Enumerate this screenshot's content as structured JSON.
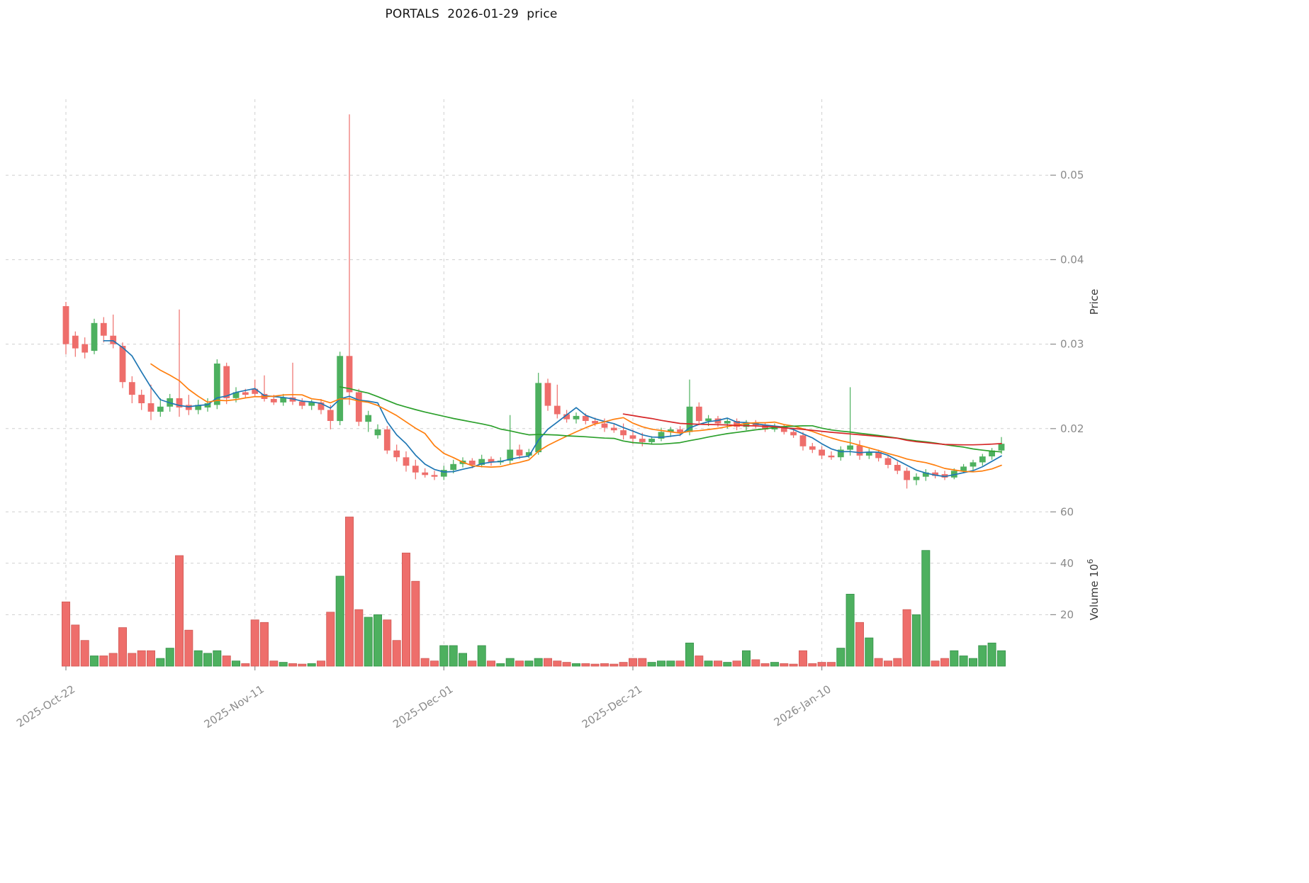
{
  "style": {
    "background": "#ffffff",
    "up_color": "#4db05f",
    "down_color": "#ee6e6b",
    "up_edge": "#35914a",
    "down_edge": "#d05a56",
    "grid_color": "#cfcfcf",
    "tick_color": "#8a8a8a",
    "axis_label_color": "#3a3a3a",
    "title_color": "#141414"
  },
  "chart_data": {
    "type": "candlestick+volume",
    "title": "PORTALS  2026-01-29  price",
    "price_axis_label": "Price",
    "volume_axis_label": "Volume 10^6",
    "volume_label_prefix": "Volume  10",
    "volume_exponent": "6",
    "grid": "dashed",
    "legend": "none",
    "x_ticks": [
      "2025-Oct-22",
      "2025-Nov-11",
      "2025-Dec-01",
      "2025-Dec-21",
      "2026-Jan-10"
    ],
    "x_tick_indices": [
      0,
      20,
      40,
      60,
      80
    ],
    "price_ticks": [
      0.02,
      0.03,
      0.04,
      0.05
    ],
    "volume_ticks": [
      20,
      40,
      60
    ],
    "price_ylim": [
      0.011,
      0.059
    ],
    "volume_ylim": [
      0,
      62
    ],
    "moving_averages": [
      {
        "name": "MA5",
        "window": 5,
        "color": "#1f77b4"
      },
      {
        "name": "MA10",
        "window": 10,
        "color": "#ff7f0e"
      },
      {
        "name": "MA30",
        "window": 30,
        "color": "#2ca02c"
      },
      {
        "name": "MA60",
        "window": 60,
        "color": "#d62728"
      }
    ],
    "dates": [
      "2025-10-22",
      "2025-10-23",
      "2025-10-24",
      "2025-10-25",
      "2025-10-26",
      "2025-10-27",
      "2025-10-28",
      "2025-10-29",
      "2025-10-30",
      "2025-10-31",
      "2025-11-01",
      "2025-11-02",
      "2025-11-03",
      "2025-11-04",
      "2025-11-05",
      "2025-11-06",
      "2025-11-07",
      "2025-11-08",
      "2025-11-09",
      "2025-11-10",
      "2025-11-11",
      "2025-11-12",
      "2025-11-13",
      "2025-11-14",
      "2025-11-15",
      "2025-11-16",
      "2025-11-17",
      "2025-11-18",
      "2025-11-19",
      "2025-11-20",
      "2025-11-21",
      "2025-11-22",
      "2025-11-23",
      "2025-11-24",
      "2025-11-25",
      "2025-11-26",
      "2025-11-27",
      "2025-11-28",
      "2025-11-29",
      "2025-11-30",
      "2025-12-01",
      "2025-12-02",
      "2025-12-03",
      "2025-12-04",
      "2025-12-05",
      "2025-12-06",
      "2025-12-07",
      "2025-12-08",
      "2025-12-09",
      "2025-12-10",
      "2025-12-11",
      "2025-12-12",
      "2025-12-13",
      "2025-12-14",
      "2025-12-15",
      "2025-12-16",
      "2025-12-17",
      "2025-12-18",
      "2025-12-19",
      "2025-12-20",
      "2025-12-21",
      "2025-12-22",
      "2025-12-23",
      "2025-12-24",
      "2025-12-25",
      "2025-12-26",
      "2025-12-27",
      "2025-12-28",
      "2025-12-29",
      "2025-12-30",
      "2025-12-31",
      "2026-01-01",
      "2026-01-02",
      "2026-01-03",
      "2026-01-04",
      "2026-01-05",
      "2026-01-06",
      "2026-01-07",
      "2026-01-08",
      "2026-01-09",
      "2026-01-10",
      "2026-01-11",
      "2026-01-12",
      "2026-01-13",
      "2026-01-14",
      "2026-01-15",
      "2026-01-16",
      "2026-01-17",
      "2026-01-18",
      "2026-01-19",
      "2026-01-20",
      "2026-01-21",
      "2026-01-22",
      "2026-01-23",
      "2026-01-24",
      "2026-01-25",
      "2026-01-26",
      "2026-01-27",
      "2026-01-28",
      "2026-01-29"
    ],
    "open": [
      0.0345,
      0.031,
      0.03,
      0.0292,
      0.0325,
      0.031,
      0.0298,
      0.0255,
      0.024,
      0.023,
      0.022,
      0.0226,
      0.0236,
      0.0228,
      0.0222,
      0.0225,
      0.0228,
      0.0274,
      0.0236,
      0.0243,
      0.0247,
      0.0241,
      0.0235,
      0.0231,
      0.0237,
      0.0232,
      0.0227,
      0.0231,
      0.0222,
      0.0209,
      0.0286,
      0.0243,
      0.0208,
      0.0192,
      0.0199,
      0.0174,
      0.0166,
      0.0156,
      0.0148,
      0.0145,
      0.0143,
      0.0151,
      0.0158,
      0.0162,
      0.0157,
      0.0164,
      0.016,
      0.0162,
      0.0175,
      0.0168,
      0.0172,
      0.0254,
      0.0227,
      0.0217,
      0.0211,
      0.0215,
      0.0209,
      0.0206,
      0.0201,
      0.0198,
      0.0192,
      0.0188,
      0.0184,
      0.0188,
      0.0196,
      0.0199,
      0.0196,
      0.0226,
      0.0209,
      0.0212,
      0.0206,
      0.0209,
      0.0202,
      0.0207,
      0.0204,
      0.0199,
      0.0203,
      0.0196,
      0.0192,
      0.0179,
      0.0175,
      0.0168,
      0.0166,
      0.0175,
      0.018,
      0.0168,
      0.0172,
      0.0165,
      0.0157,
      0.015,
      0.0139,
      0.0143,
      0.0148,
      0.0146,
      0.0142,
      0.015,
      0.0155,
      0.016,
      0.0167,
      0.0174
    ],
    "high": [
      0.035,
      0.0315,
      0.0308,
      0.033,
      0.0332,
      0.0335,
      0.0302,
      0.0262,
      0.0246,
      0.0252,
      0.0236,
      0.0241,
      0.0341,
      0.024,
      0.0234,
      0.0236,
      0.0282,
      0.0278,
      0.0249,
      0.0247,
      0.0258,
      0.0263,
      0.024,
      0.0241,
      0.0278,
      0.0236,
      0.0234,
      0.0235,
      0.0228,
      0.0291,
      0.0572,
      0.0247,
      0.0221,
      0.0205,
      0.0203,
      0.0181,
      0.0173,
      0.0163,
      0.0153,
      0.015,
      0.0156,
      0.0163,
      0.0166,
      0.0165,
      0.0169,
      0.0167,
      0.0166,
      0.0216,
      0.0181,
      0.0176,
      0.0266,
      0.0259,
      0.0252,
      0.0222,
      0.0219,
      0.0218,
      0.0213,
      0.0212,
      0.0205,
      0.0206,
      0.0199,
      0.0195,
      0.0191,
      0.0201,
      0.0202,
      0.0203,
      0.0258,
      0.0231,
      0.0216,
      0.0215,
      0.0212,
      0.0212,
      0.021,
      0.021,
      0.0207,
      0.0206,
      0.0205,
      0.0199,
      0.0196,
      0.0183,
      0.0179,
      0.0173,
      0.0179,
      0.0249,
      0.0186,
      0.0176,
      0.0175,
      0.0169,
      0.0161,
      0.0154,
      0.0147,
      0.0152,
      0.0151,
      0.015,
      0.0153,
      0.0158,
      0.0163,
      0.017,
      0.0177,
      0.019
    ],
    "low": [
      0.0288,
      0.0285,
      0.0283,
      0.0288,
      0.0302,
      0.0295,
      0.0248,
      0.023,
      0.0222,
      0.021,
      0.0214,
      0.022,
      0.0214,
      0.0216,
      0.0217,
      0.022,
      0.0223,
      0.0229,
      0.0231,
      0.0236,
      0.0238,
      0.0232,
      0.0228,
      0.0227,
      0.0228,
      0.0223,
      0.0222,
      0.0217,
      0.0199,
      0.0204,
      0.0228,
      0.0203,
      0.0196,
      0.0188,
      0.017,
      0.0161,
      0.0149,
      0.014,
      0.0142,
      0.0139,
      0.0139,
      0.0147,
      0.0154,
      0.0153,
      0.0154,
      0.0156,
      0.0157,
      0.0158,
      0.0164,
      0.0165,
      0.0169,
      0.0221,
      0.0212,
      0.0207,
      0.0206,
      0.0205,
      0.0203,
      0.0196,
      0.0195,
      0.0187,
      0.0182,
      0.0179,
      0.0181,
      0.0185,
      0.019,
      0.0191,
      0.0192,
      0.0204,
      0.0203,
      0.0202,
      0.02,
      0.0198,
      0.0198,
      0.02,
      0.0196,
      0.0196,
      0.0193,
      0.0189,
      0.0174,
      0.0171,
      0.0164,
      0.0163,
      0.0162,
      0.0168,
      0.0163,
      0.0164,
      0.0161,
      0.0153,
      0.0146,
      0.0129,
      0.0133,
      0.0138,
      0.0141,
      0.0139,
      0.014,
      0.0147,
      0.0151,
      0.0156,
      0.0163,
      0.017
    ],
    "close": [
      0.03,
      0.0295,
      0.029,
      0.0325,
      0.031,
      0.03,
      0.0255,
      0.024,
      0.023,
      0.022,
      0.0226,
      0.0236,
      0.0225,
      0.0222,
      0.0228,
      0.023,
      0.0277,
      0.0236,
      0.0243,
      0.024,
      0.0241,
      0.0235,
      0.0231,
      0.0237,
      0.0232,
      0.0227,
      0.0231,
      0.0222,
      0.0209,
      0.0286,
      0.0243,
      0.0208,
      0.0216,
      0.0199,
      0.0174,
      0.0166,
      0.0156,
      0.0148,
      0.0145,
      0.0143,
      0.0151,
      0.0158,
      0.0162,
      0.0157,
      0.0164,
      0.016,
      0.0162,
      0.0175,
      0.0168,
      0.0172,
      0.0254,
      0.0227,
      0.0217,
      0.0211,
      0.0215,
      0.0209,
      0.0206,
      0.0201,
      0.0198,
      0.0192,
      0.0188,
      0.0184,
      0.0188,
      0.0196,
      0.0199,
      0.0195,
      0.0226,
      0.0209,
      0.0212,
      0.0206,
      0.0209,
      0.0202,
      0.0207,
      0.0204,
      0.0199,
      0.0203,
      0.0196,
      0.0192,
      0.0179,
      0.0175,
      0.0168,
      0.0166,
      0.0175,
      0.018,
      0.0168,
      0.0172,
      0.0165,
      0.0157,
      0.015,
      0.0139,
      0.0143,
      0.0148,
      0.0144,
      0.0142,
      0.015,
      0.0155,
      0.016,
      0.0167,
      0.0174,
      0.0182
    ],
    "volume_millions": [
      25,
      16,
      10,
      4,
      4,
      5,
      15,
      5,
      6,
      6,
      3,
      7,
      43,
      14,
      6,
      5,
      6,
      4,
      2,
      1,
      18,
      17,
      2,
      1.5,
      1,
      0.8,
      1,
      2,
      21,
      35,
      58,
      22,
      19,
      20,
      18,
      10,
      44,
      33,
      3,
      2,
      8,
      8,
      5,
      2,
      8,
      2,
      1,
      3,
      2,
      2,
      3,
      3,
      2,
      1.5,
      1,
      1,
      0.8,
      1,
      0.8,
      1.5,
      3,
      3,
      1.5,
      2,
      2,
      2,
      9,
      4,
      2,
      2,
      1.5,
      2,
      6,
      2.5,
      1,
      1.5,
      1,
      0.8,
      6,
      1,
      1.5,
      1.5,
      7,
      28,
      17,
      11,
      3,
      2,
      3,
      22,
      20,
      45,
      2,
      3,
      6,
      4,
      3,
      8,
      9,
      6
    ]
  }
}
